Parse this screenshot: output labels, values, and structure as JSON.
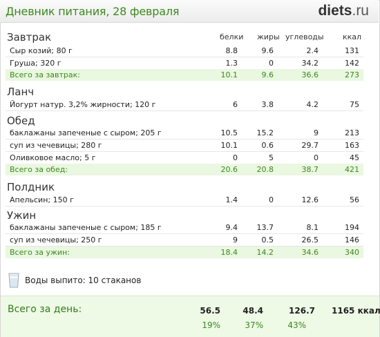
{
  "header": {
    "title": "Дневник питания, 28 февраля",
    "logo_main": "diets",
    "logo_tld": ".ru"
  },
  "columns": {
    "protein": "белки",
    "fat": "жиры",
    "carbs": "углеводы",
    "kcal": "ккал"
  },
  "meals": {
    "breakfast": {
      "title": "Завтрак",
      "items": [
        {
          "name": "Сыр козий; 80 г",
          "protein": "8.8",
          "fat": "9.6",
          "carbs": "2.4",
          "kcal": "131"
        },
        {
          "name": "Груша; 320 г",
          "protein": "1.3",
          "fat": "0",
          "carbs": "34.2",
          "kcal": "142"
        }
      ],
      "total": {
        "label": "Всего за завтрак:",
        "protein": "10.1",
        "fat": "9.6",
        "carbs": "36.6",
        "kcal": "273"
      }
    },
    "lunch": {
      "title": "Ланч",
      "items": [
        {
          "name": "Йогурт натур. 3,2% жирности; 120 г",
          "protein": "6",
          "fat": "3.8",
          "carbs": "4.2",
          "kcal": "75"
        }
      ]
    },
    "dinner_day": {
      "title": "Обед",
      "items": [
        {
          "name": "баклажаны запеченые с сыром; 205 г",
          "protein": "10.5",
          "fat": "15.2",
          "carbs": "9",
          "kcal": "213"
        },
        {
          "name": "суп из чечевицы; 280 г",
          "protein": "10.1",
          "fat": "0.6",
          "carbs": "29.7",
          "kcal": "163"
        },
        {
          "name": "Оливковое масло; 5 г",
          "protein": "0",
          "fat": "5",
          "carbs": "0",
          "kcal": "45"
        }
      ],
      "total": {
        "label": "Всего за обед:",
        "protein": "20.6",
        "fat": "20.8",
        "carbs": "38.7",
        "kcal": "421"
      }
    },
    "snack": {
      "title": "Полдник",
      "items": [
        {
          "name": "Апельсин; 150 г",
          "protein": "1.4",
          "fat": "0",
          "carbs": "12.6",
          "kcal": "56"
        }
      ]
    },
    "supper": {
      "title": "Ужин",
      "items": [
        {
          "name": "баклажаны запеченые с сыром; 185 г",
          "protein": "9.4",
          "fat": "13.7",
          "carbs": "8.1",
          "kcal": "194"
        },
        {
          "name": "суп из чечевицы; 250 г",
          "protein": "9",
          "fat": "0.5",
          "carbs": "26.5",
          "kcal": "146"
        }
      ],
      "total": {
        "label": "Всего за ужин:",
        "protein": "18.4",
        "fat": "14.2",
        "carbs": "34.6",
        "kcal": "340"
      }
    }
  },
  "water": {
    "text": "Воды выпито: 10 стаканов",
    "icon": "glass-icon"
  },
  "day_total": {
    "label": "Всего за день:",
    "protein": "56.5",
    "fat": "48.4",
    "carbs": "126.7",
    "kcal": "1165 ккал",
    "protein_pct": "19%",
    "fat_pct": "37%",
    "carbs_pct": "43%"
  },
  "colors": {
    "accent_green": "#3b8a1c",
    "total_bg": "#eaf7e1",
    "day_bg": "#eef9e6"
  }
}
